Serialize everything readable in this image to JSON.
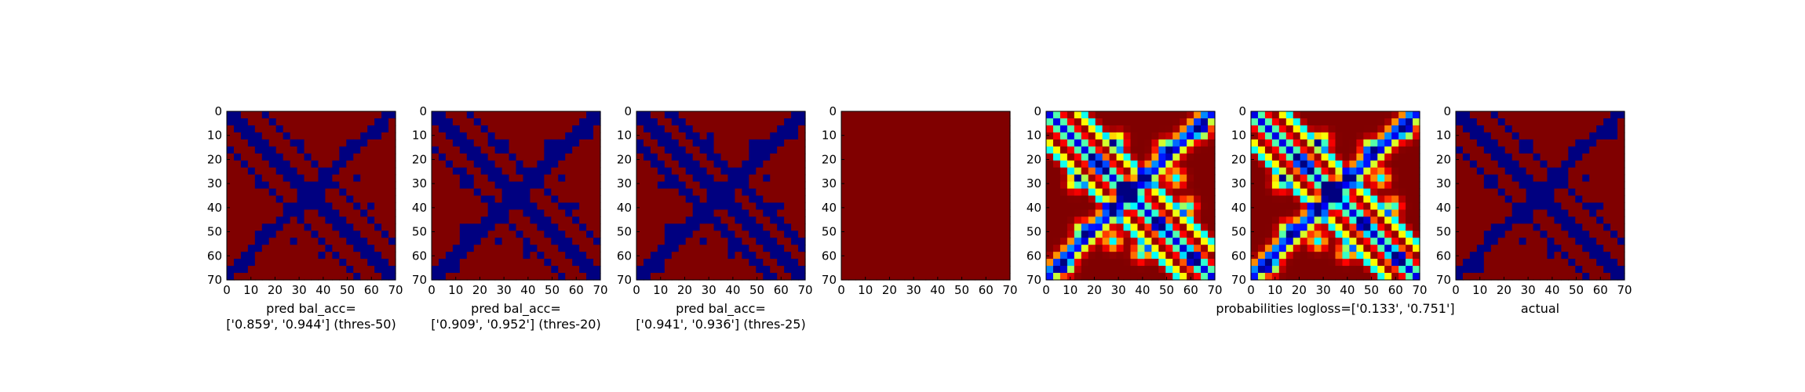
{
  "figure": {
    "panels": [
      {
        "id": "pred-thres-50",
        "kind": "binary",
        "title_lines": [
          "pred bal_acc=",
          "['0.859', '0.944'] (thres-50)"
        ]
      },
      {
        "id": "pred-thres-20",
        "kind": "binary",
        "title_lines": [
          "pred bal_acc=",
          "['0.909', '0.952'] (thres-20)"
        ]
      },
      {
        "id": "pred-thres-25",
        "kind": "binary",
        "title_lines": [
          "pred bal_acc=",
          "['0.941', '0.936'] (thres-25)"
        ]
      },
      {
        "id": "sparse-prediction",
        "kind": "sparse",
        "title_lines": []
      },
      {
        "id": "probabilities-a",
        "kind": "heat",
        "title_lines": []
      },
      {
        "id": "probabilities-b",
        "kind": "heat",
        "title_lines": [
          "probabilities logloss=['0.133', '0.751']"
        ]
      },
      {
        "id": "actual",
        "kind": "binary",
        "title_lines": [
          "actual"
        ]
      }
    ]
  },
  "chart_data": {
    "type": "heatmap",
    "xlim": [
      0,
      70
    ],
    "ylim": [
      70,
      0
    ],
    "x_ticks": [
      0,
      10,
      20,
      30,
      40,
      50,
      60,
      70
    ],
    "y_ticks": [
      0,
      10,
      20,
      30,
      40,
      50,
      60,
      70
    ],
    "matrix_size": 72,
    "colormap": "jet",
    "colors": {
      "low": "#00008f",
      "high": "#800000"
    },
    "grid": false
  }
}
